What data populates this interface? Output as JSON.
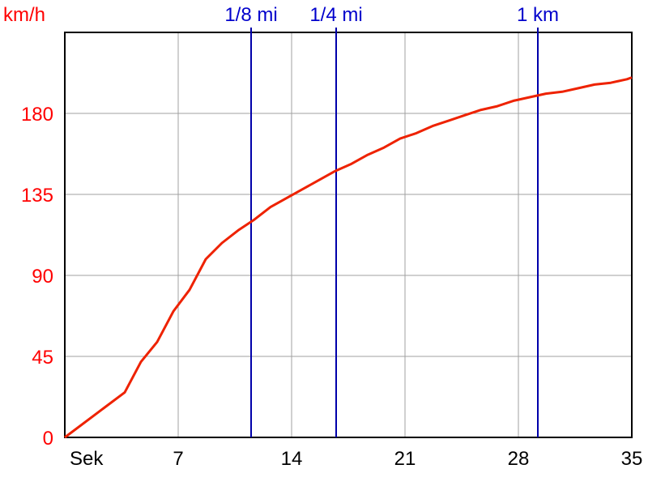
{
  "chart_data": {
    "type": "line",
    "ylabel": "km/h",
    "xlabel": "Sek",
    "xlim": [
      0,
      35
    ],
    "ylim": [
      0,
      225
    ],
    "x_ticks": [
      7,
      14,
      21,
      28,
      35
    ],
    "y_ticks": [
      0,
      45,
      90,
      135,
      180
    ],
    "grid": true,
    "series": [
      {
        "color": "#ee2200",
        "x": [
          0,
          3.7,
          4.7,
          5.7,
          6.7,
          7.7,
          8.7,
          9.7,
          10.7,
          11.7,
          12.7,
          13.7,
          14.7,
          15.7,
          16.7,
          17.7,
          18.7,
          19.7,
          20.7,
          21.7,
          22.7,
          23.7,
          24.7,
          25.7,
          26.7,
          27.7,
          28.7,
          29.7,
          30.7,
          31.7,
          32.7,
          33.7,
          34.7,
          35
        ],
        "y": [
          0,
          25,
          42,
          53,
          70,
          82,
          99,
          108,
          115,
          121,
          128,
          133,
          138,
          143,
          148,
          152,
          157,
          161,
          166,
          169,
          173,
          176,
          179,
          182,
          184,
          187,
          189,
          191,
          192,
          194,
          196,
          197,
          199,
          200
        ]
      }
    ],
    "markers": [
      {
        "label": "1/8 mi",
        "x": 11.5,
        "color": "#0000aa"
      },
      {
        "label": "1/4 mi",
        "x": 16.75,
        "color": "#0000aa"
      },
      {
        "label": "1 km",
        "x": 29.2,
        "color": "#0000aa"
      }
    ]
  }
}
